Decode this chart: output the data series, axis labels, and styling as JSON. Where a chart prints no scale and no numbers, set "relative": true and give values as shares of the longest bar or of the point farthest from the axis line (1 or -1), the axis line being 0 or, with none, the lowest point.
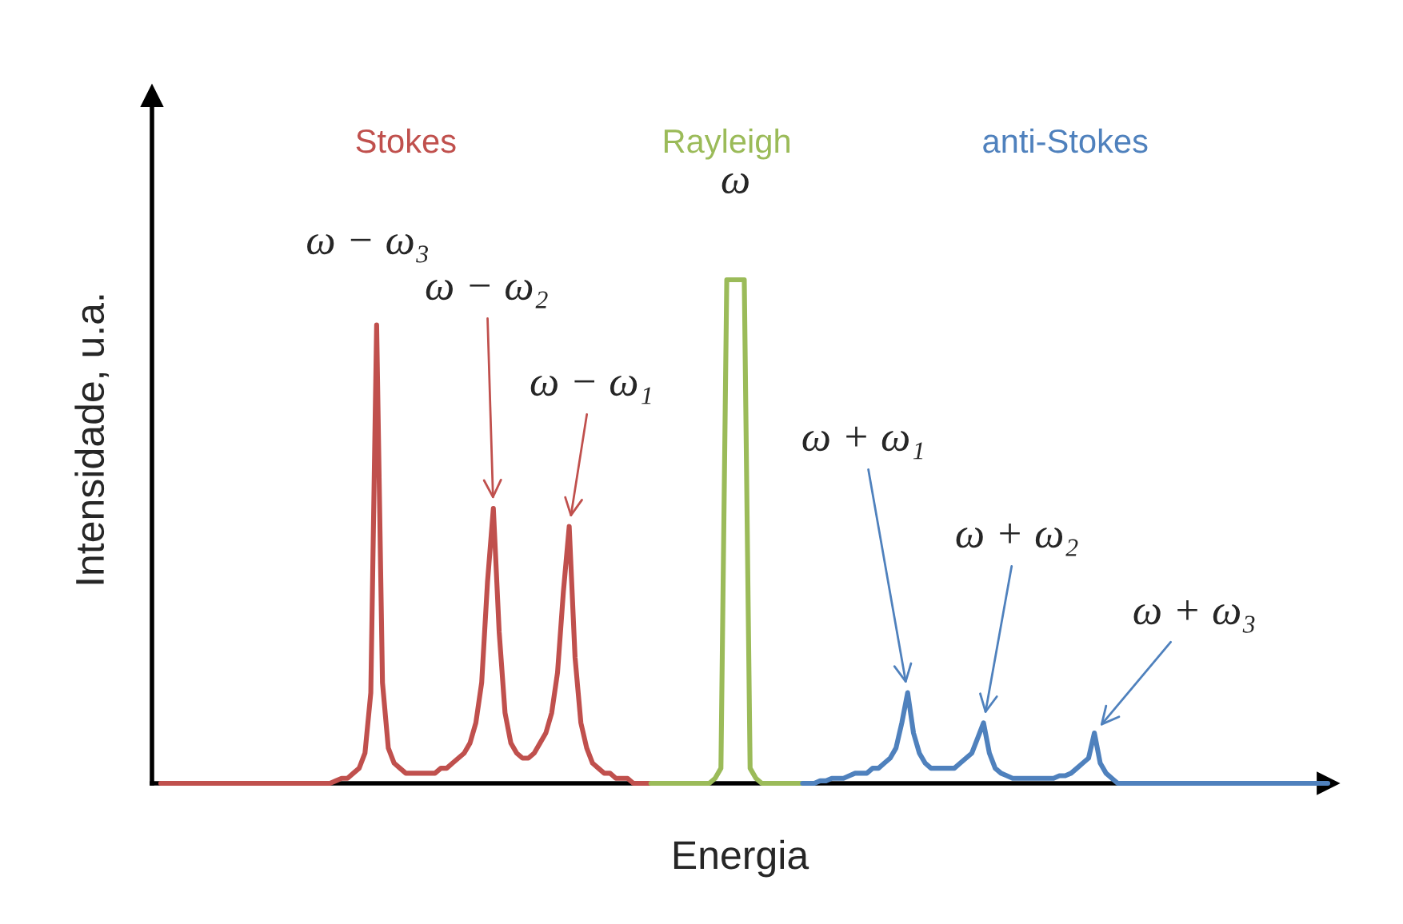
{
  "chart_data": {
    "type": "line",
    "relative": true,
    "xlabel": "Energia",
    "ylabel": "Intensidade, u.a.",
    "marker": "none",
    "line_style": "solid",
    "categories": [
      null,
      null,
      null,
      null,
      null,
      null,
      null,
      null,
      null,
      null,
      null,
      null,
      null,
      null,
      null,
      null,
      null,
      null,
      null,
      null,
      null,
      null,
      null,
      null,
      null,
      null,
      null,
      null,
      null,
      null,
      null,
      null,
      null,
      null,
      null,
      null,
      null,
      null,
      null,
      null,
      null,
      null,
      null,
      null,
      null,
      null,
      null,
      null,
      null,
      null,
      null,
      null,
      null,
      null,
      null,
      null,
      null,
      null,
      null,
      null,
      null,
      null,
      null,
      null,
      null,
      null,
      null,
      null,
      null,
      null,
      null,
      null,
      null,
      null,
      null,
      null,
      null,
      null,
      null,
      null,
      null,
      null,
      null,
      null,
      null,
      null,
      null,
      null,
      null,
      null,
      null,
      null,
      null,
      null,
      null,
      null,
      null,
      null,
      null,
      null,
      null,
      null,
      null,
      null,
      null,
      null,
      null,
      null,
      null,
      null,
      null,
      null,
      null,
      null,
      null,
      null,
      null,
      null,
      null,
      null,
      null,
      null,
      null,
      null,
      null,
      null,
      null,
      null,
      null,
      null,
      null,
      null,
      null,
      null,
      null,
      null,
      null,
      null,
      null,
      null,
      null,
      null,
      null,
      null,
      null,
      null,
      null,
      null,
      null,
      null,
      null,
      null,
      null,
      null,
      null,
      null,
      null,
      null,
      null,
      null,
      null,
      null,
      null,
      null,
      null,
      null,
      null,
      null,
      null,
      null,
      null,
      null,
      null,
      null,
      null,
      null,
      null,
      null,
      null,
      null,
      null,
      null,
      null,
      null,
      null,
      null,
      null,
      null,
      null,
      null,
      null,
      null,
      null,
      null,
      null,
      null,
      null,
      null,
      null,
      null,
      null
    ],
    "series": [
      {
        "name": "Stokes",
        "color": "#c0504d",
        "values": [
          0,
          0,
          0,
          0,
          0,
          0,
          0,
          0,
          0,
          0,
          0,
          0,
          0,
          0,
          0,
          0,
          0,
          0,
          0,
          0,
          0,
          0,
          0,
          0,
          0,
          0,
          0,
          0,
          0,
          0,
          0.005,
          0.01,
          0.01,
          0.02,
          0.03,
          0.06,
          0.18,
          0.91,
          0.2,
          0.07,
          0.04,
          0.03,
          0.02,
          0.02,
          0.02,
          0.02,
          0.02,
          0.02,
          0.03,
          0.03,
          0.04,
          0.05,
          0.06,
          0.08,
          0.12,
          0.2,
          0.4,
          0.546,
          0.3,
          0.14,
          0.08,
          0.06,
          0.05,
          0.05,
          0.06,
          0.08,
          0.1,
          0.14,
          0.22,
          0.38,
          0.51,
          0.25,
          0.12,
          0.07,
          0.04,
          0.03,
          0.02,
          0.02,
          0.01,
          0.01,
          0.01,
          0,
          0,
          0,
          0,
          null,
          null,
          null,
          null,
          null,
          null,
          null,
          null,
          null,
          null,
          null,
          null,
          null,
          null,
          null,
          null,
          null,
          null,
          null,
          null,
          null,
          null,
          null,
          null,
          null,
          null,
          null,
          null,
          null,
          null,
          null,
          null,
          null,
          null,
          null,
          null,
          null,
          null,
          null,
          null,
          null,
          null,
          null,
          null,
          null,
          null,
          null,
          null,
          null,
          null,
          null,
          null,
          null,
          null,
          null,
          null,
          null,
          null,
          null,
          null,
          null,
          null,
          null,
          null,
          null,
          null,
          null,
          null,
          null,
          null,
          null,
          null,
          null,
          null,
          null,
          null,
          null,
          null,
          null,
          null,
          null,
          null,
          null,
          null,
          null,
          null,
          null,
          null,
          null,
          null,
          null,
          null,
          null,
          null,
          null,
          null,
          null,
          null,
          null,
          null,
          null,
          null,
          null,
          null,
          null,
          null,
          null,
          null,
          null,
          null,
          null,
          null,
          null,
          null,
          null,
          null
        ]
      },
      {
        "name": "Rayleigh",
        "color": "#9bbb59",
        "values": [
          null,
          null,
          null,
          null,
          null,
          null,
          null,
          null,
          null,
          null,
          null,
          null,
          null,
          null,
          null,
          null,
          null,
          null,
          null,
          null,
          null,
          null,
          null,
          null,
          null,
          null,
          null,
          null,
          null,
          null,
          null,
          null,
          null,
          null,
          null,
          null,
          null,
          null,
          null,
          null,
          null,
          null,
          null,
          null,
          null,
          null,
          null,
          null,
          null,
          null,
          null,
          null,
          null,
          null,
          null,
          null,
          null,
          null,
          null,
          null,
          null,
          null,
          null,
          null,
          null,
          null,
          null,
          null,
          null,
          null,
          null,
          null,
          null,
          null,
          null,
          null,
          null,
          null,
          null,
          null,
          null,
          null,
          null,
          null,
          0,
          0,
          0,
          0,
          0,
          0,
          0,
          0,
          0,
          0,
          0,
          0.01,
          0.03,
          1,
          1,
          1,
          1,
          0.03,
          0.01,
          0,
          0,
          0,
          0,
          0,
          0,
          0,
          0,
          null,
          null,
          null,
          null,
          null,
          null,
          null,
          null,
          null,
          null,
          null,
          null,
          null,
          null,
          null,
          null,
          null,
          null,
          null,
          null,
          null,
          null,
          null,
          null,
          null,
          null,
          null,
          null,
          null,
          null,
          null,
          null,
          null,
          null,
          null,
          null,
          null,
          null,
          null,
          null,
          null,
          null,
          null,
          null,
          null,
          null,
          null,
          null,
          null,
          null,
          null,
          null,
          null,
          null,
          null,
          null,
          null,
          null,
          null,
          null,
          null,
          null,
          null,
          null,
          null,
          null,
          null,
          null,
          null,
          null,
          null,
          null,
          null,
          null,
          null,
          null,
          null,
          null,
          null,
          null,
          null,
          null,
          null,
          null,
          null,
          null,
          null,
          null,
          null,
          null
        ]
      },
      {
        "name": "anti-Stokes",
        "color": "#4f81bd",
        "values": [
          null,
          null,
          null,
          null,
          null,
          null,
          null,
          null,
          null,
          null,
          null,
          null,
          null,
          null,
          null,
          null,
          null,
          null,
          null,
          null,
          null,
          null,
          null,
          null,
          null,
          null,
          null,
          null,
          null,
          null,
          null,
          null,
          null,
          null,
          null,
          null,
          null,
          null,
          null,
          null,
          null,
          null,
          null,
          null,
          null,
          null,
          null,
          null,
          null,
          null,
          null,
          null,
          null,
          null,
          null,
          null,
          null,
          null,
          null,
          null,
          null,
          null,
          null,
          null,
          null,
          null,
          null,
          null,
          null,
          null,
          null,
          null,
          null,
          null,
          null,
          null,
          null,
          null,
          null,
          null,
          null,
          null,
          null,
          null,
          null,
          null,
          null,
          null,
          null,
          null,
          null,
          null,
          null,
          null,
          null,
          null,
          null,
          null,
          null,
          null,
          null,
          null,
          null,
          null,
          null,
          null,
          null,
          null,
          null,
          null,
          0,
          0,
          0,
          0.005,
          0.005,
          0.01,
          0.01,
          0.01,
          0.015,
          0.02,
          0.02,
          0.02,
          0.03,
          0.03,
          0.04,
          0.05,
          0.07,
          0.12,
          0.18,
          0.1,
          0.06,
          0.04,
          0.03,
          0.03,
          0.03,
          0.03,
          0.03,
          0.04,
          0.05,
          0.06,
          0.09,
          0.12,
          0.06,
          0.03,
          0.02,
          0.015,
          0.01,
          0.01,
          0.01,
          0.01,
          0.01,
          0.01,
          0.01,
          0.01,
          0.015,
          0.015,
          0.02,
          0.03,
          0.04,
          0.05,
          0.1,
          0.04,
          0.02,
          0.01,
          0,
          0,
          0,
          0,
          0,
          0,
          0,
          0,
          0,
          0,
          0,
          0,
          0,
          0,
          0,
          0,
          0,
          0,
          0,
          0,
          0,
          0,
          0,
          0,
          0,
          0,
          0,
          0,
          0,
          0,
          0,
          0,
          0,
          0,
          0,
          0,
          0
        ]
      }
    ],
    "annotations": [
      "ω − ω₃",
      "ω − ω₂",
      "ω − ω₁",
      "ω",
      "ω + ω₁",
      "ω + ω₂",
      "ω + ω₃"
    ]
  }
}
